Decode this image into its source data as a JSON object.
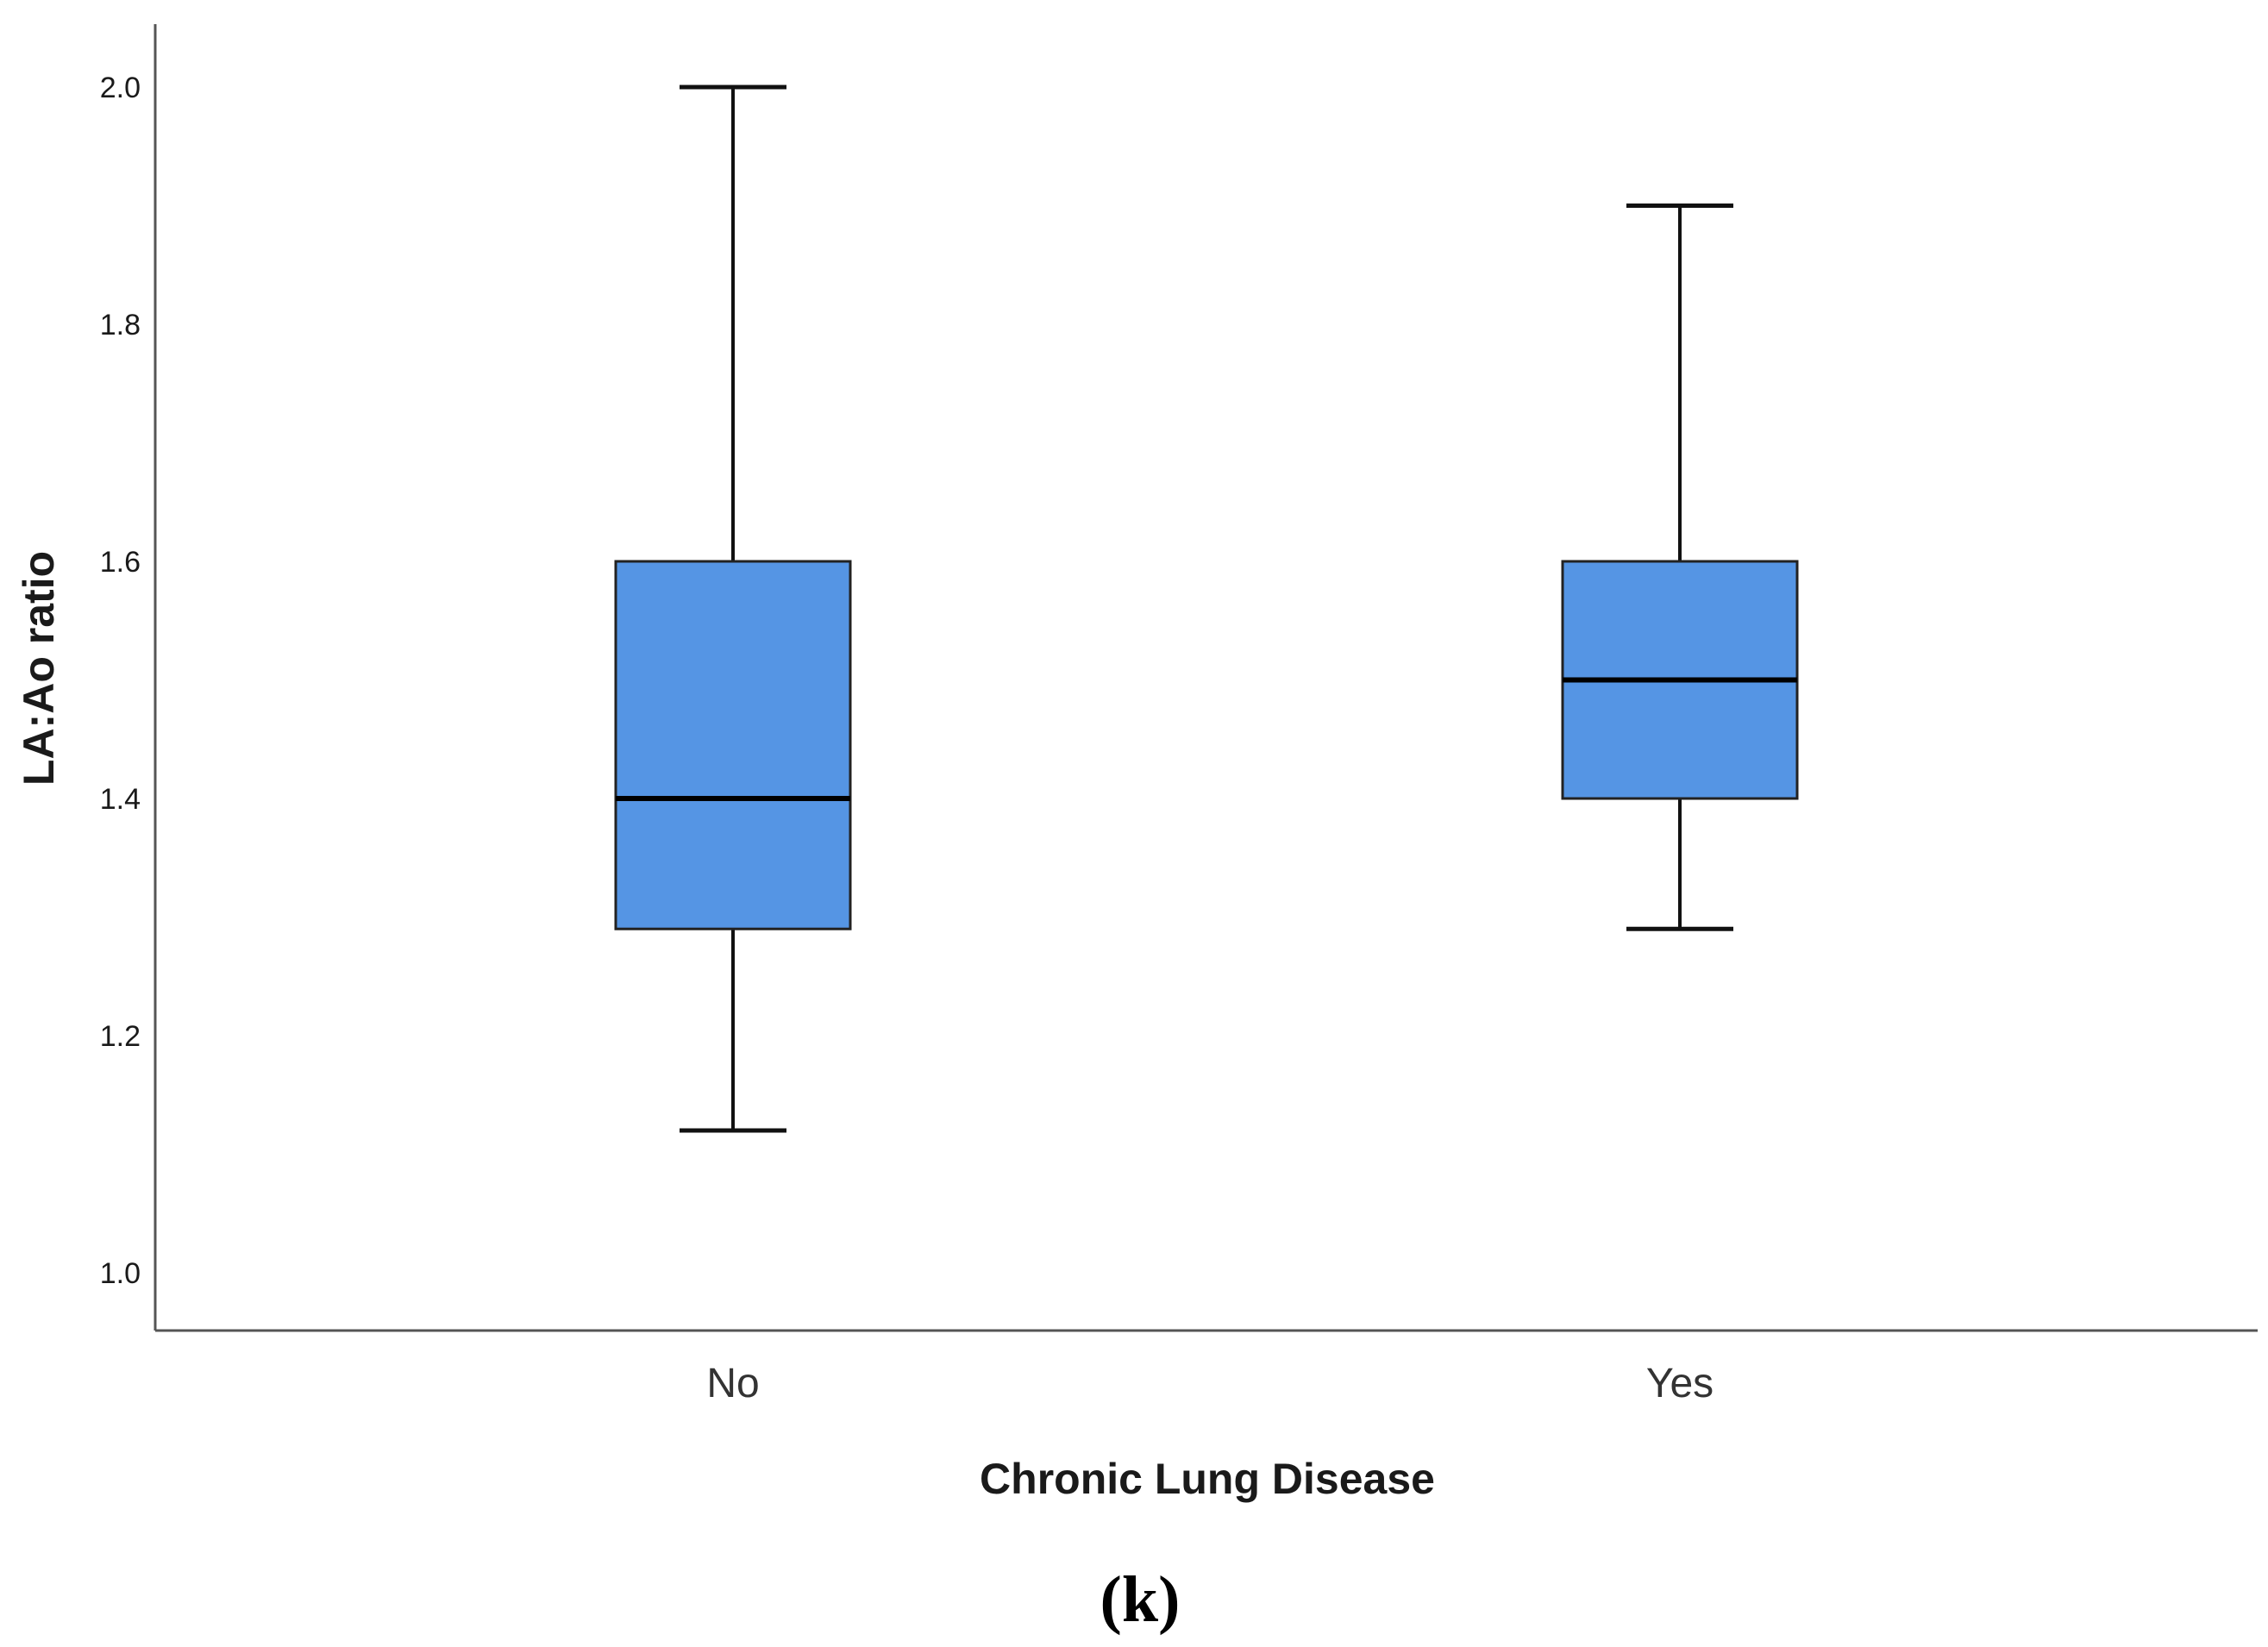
{
  "chart_data": {
    "type": "box",
    "xlabel": "Chronic Lung Disease",
    "ylabel": "LA:Ao ratio",
    "categories": [
      "No",
      "Yes"
    ],
    "boxes": [
      {
        "category": "No",
        "min": 1.12,
        "q1": 1.29,
        "median": 1.4,
        "q3": 1.6,
        "max": 2.0
      },
      {
        "category": "Yes",
        "min": 1.29,
        "q1": 1.4,
        "median": 1.5,
        "q3": 1.6,
        "max": 1.9
      }
    ],
    "ylim": [
      0.95,
      2.05
    ],
    "yticks": [
      "1.0",
      "1.2",
      "1.4",
      "1.6",
      "1.8",
      "2.0"
    ],
    "grid": false,
    "legend": "none",
    "box_color": "#5595E4",
    "line_color": "#111111"
  },
  "panel_label": "(k)"
}
